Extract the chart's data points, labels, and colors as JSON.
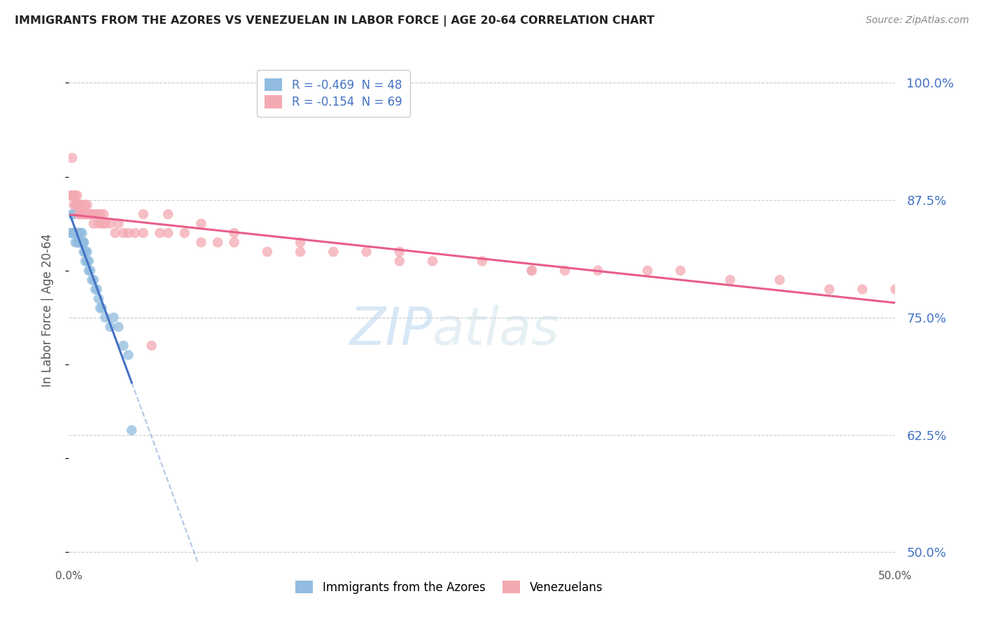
{
  "title": "IMMIGRANTS FROM THE AZORES VS VENEZUELAN IN LABOR FORCE | AGE 20-64 CORRELATION CHART",
  "source": "Source: ZipAtlas.com",
  "ylabel": "In Labor Force | Age 20-64",
  "right_ytick_values": [
    1.0,
    0.875,
    0.75,
    0.625,
    0.5
  ],
  "xlim": [
    0.0,
    0.5
  ],
  "ylim": [
    0.49,
    1.025
  ],
  "legend_entries": [
    {
      "label_r": "R = -0.469",
      "label_n": "  N = 48",
      "color": "#92bde0"
    },
    {
      "label_r": "R = -0.154",
      "label_n": "  N = 69",
      "color": "#f4a9b2"
    }
  ],
  "legend_bottom": [
    {
      "label": "Immigrants from the Azores",
      "color": "#92bde0"
    },
    {
      "label": "Venezuelans",
      "color": "#f4a9b2"
    }
  ],
  "azores_x": [
    0.001,
    0.002,
    0.002,
    0.003,
    0.003,
    0.003,
    0.004,
    0.004,
    0.004,
    0.005,
    0.005,
    0.005,
    0.006,
    0.006,
    0.006,
    0.006,
    0.007,
    0.007,
    0.007,
    0.007,
    0.008,
    0.008,
    0.008,
    0.009,
    0.009,
    0.009,
    0.01,
    0.01,
    0.01,
    0.011,
    0.011,
    0.012,
    0.012,
    0.013,
    0.014,
    0.015,
    0.016,
    0.017,
    0.018,
    0.019,
    0.02,
    0.022,
    0.025,
    0.027,
    0.03,
    0.033,
    0.036,
    0.038
  ],
  "azores_y": [
    0.84,
    0.86,
    0.84,
    0.84,
    0.86,
    0.84,
    0.84,
    0.83,
    0.84,
    0.84,
    0.83,
    0.84,
    0.84,
    0.83,
    0.83,
    0.84,
    0.83,
    0.83,
    0.84,
    0.83,
    0.83,
    0.83,
    0.84,
    0.83,
    0.82,
    0.83,
    0.82,
    0.81,
    0.82,
    0.81,
    0.82,
    0.81,
    0.8,
    0.8,
    0.79,
    0.79,
    0.78,
    0.78,
    0.77,
    0.76,
    0.76,
    0.75,
    0.74,
    0.75,
    0.74,
    0.72,
    0.71,
    0.63
  ],
  "venezuelan_x": [
    0.001,
    0.002,
    0.002,
    0.003,
    0.003,
    0.004,
    0.004,
    0.005,
    0.005,
    0.006,
    0.006,
    0.007,
    0.007,
    0.008,
    0.008,
    0.009,
    0.01,
    0.01,
    0.011,
    0.011,
    0.012,
    0.013,
    0.014,
    0.015,
    0.016,
    0.017,
    0.018,
    0.019,
    0.02,
    0.021,
    0.022,
    0.025,
    0.028,
    0.03,
    0.033,
    0.036,
    0.04,
    0.045,
    0.05,
    0.055,
    0.06,
    0.07,
    0.08,
    0.09,
    0.1,
    0.12,
    0.14,
    0.16,
    0.18,
    0.2,
    0.22,
    0.25,
    0.28,
    0.3,
    0.32,
    0.35,
    0.37,
    0.4,
    0.43,
    0.46,
    0.48,
    0.5,
    0.045,
    0.06,
    0.08,
    0.1,
    0.14,
    0.2,
    0.28
  ],
  "venezuelan_y": [
    0.88,
    0.92,
    0.88,
    0.88,
    0.87,
    0.88,
    0.87,
    0.88,
    0.87,
    0.87,
    0.86,
    0.87,
    0.86,
    0.87,
    0.86,
    0.86,
    0.87,
    0.86,
    0.86,
    0.87,
    0.86,
    0.86,
    0.86,
    0.85,
    0.86,
    0.86,
    0.85,
    0.86,
    0.85,
    0.86,
    0.85,
    0.85,
    0.84,
    0.85,
    0.84,
    0.84,
    0.84,
    0.84,
    0.72,
    0.84,
    0.84,
    0.84,
    0.83,
    0.83,
    0.83,
    0.82,
    0.82,
    0.82,
    0.82,
    0.81,
    0.81,
    0.81,
    0.8,
    0.8,
    0.8,
    0.8,
    0.8,
    0.79,
    0.79,
    0.78,
    0.78,
    0.78,
    0.86,
    0.86,
    0.85,
    0.84,
    0.83,
    0.82,
    0.8
  ],
  "azores_color": "#92bde0",
  "venezuelan_color": "#f4a9b2",
  "azores_line_color": "#4472c4",
  "venezuelan_line_color": "#e85d8a",
  "background_color": "#ffffff",
  "grid_color": "#cccccc",
  "watermark_text": "ZIPatlas",
  "title_color": "#222222",
  "source_color": "#888888",
  "axis_label_color": "#555555",
  "right_tick_color": "#4472c4",
  "xtick_labels": [
    "0.0%",
    "",
    "",
    "",
    "",
    "",
    "",
    "",
    "",
    "",
    "50.0%"
  ]
}
